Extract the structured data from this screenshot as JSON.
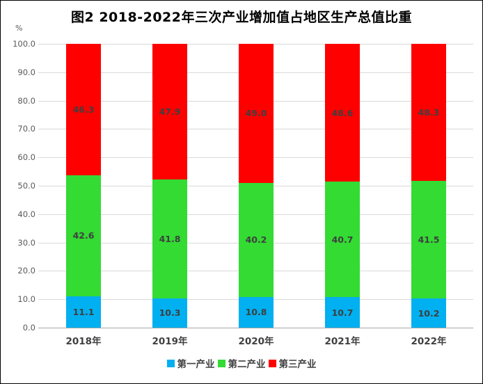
{
  "window": {
    "background": "#FFFFFF",
    "frame_color": "#000000"
  },
  "chart_data": {
    "type": "bar",
    "stacked": true,
    "title": "图2 2018-2022年三次产业增加值占地区生产总值比重",
    "unit_label": "%",
    "categories": [
      "2018年",
      "2019年",
      "2020年",
      "2021年",
      "2022年"
    ],
    "series": [
      {
        "name": "第一产业",
        "color": "#00B0F0",
        "values": [
          11.1,
          10.3,
          10.8,
          10.7,
          10.2
        ]
      },
      {
        "name": "第二产业",
        "color": "#33DB33",
        "values": [
          42.6,
          41.8,
          40.2,
          40.7,
          41.5
        ]
      },
      {
        "name": "第三产业",
        "color": "#FF0000",
        "values": [
          46.3,
          47.9,
          49.0,
          48.6,
          48.3
        ]
      }
    ],
    "ylim": [
      0,
      100
    ],
    "ytick_step": 10,
    "ytick_labels": [
      "0.0",
      "10.0",
      "20.0",
      "30.0",
      "40.0",
      "50.0",
      "60.0",
      "70.0",
      "80.0",
      "90.0",
      "100.0"
    ],
    "grid": true,
    "gridline_color": "#D9D9D9",
    "axis_line_color": "#A6A6A6",
    "value_label_color": "#3F3F3F",
    "legend_position": "bottom"
  }
}
